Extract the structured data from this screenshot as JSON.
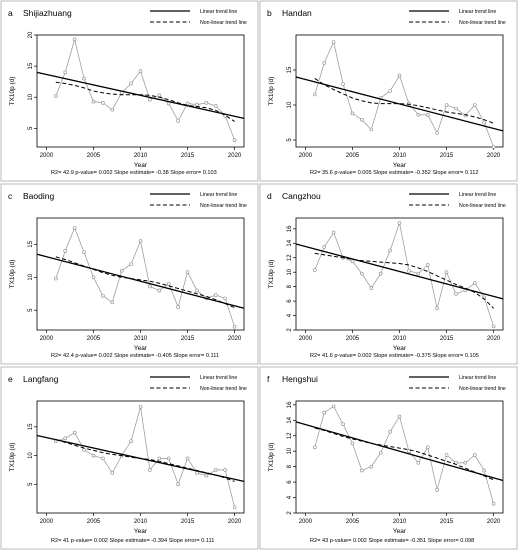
{
  "legend": {
    "linear": "Linear trend line",
    "nonlinear": "Non-linear trend line"
  },
  "xlabel": "Year",
  "ylabel": "TX10p  (d)",
  "chart_data": [
    {
      "type": "line",
      "panel": "a",
      "title": "Shijiazhuang",
      "x": [
        2001,
        2002,
        2003,
        2004,
        2005,
        2006,
        2007,
        2008,
        2009,
        2010,
        2011,
        2012,
        2013,
        2014,
        2015,
        2016,
        2017,
        2018,
        2019,
        2020
      ],
      "observed": [
        10.2,
        14.0,
        19.3,
        13.0,
        9.3,
        9.1,
        8.0,
        10.7,
        12.2,
        14.2,
        9.6,
        10.3,
        9.0,
        6.2,
        9.0,
        8.8,
        9.1,
        8.6,
        7.0,
        3.1
      ],
      "linear_trend": [
        14.0,
        6.6
      ],
      "nonlinear_trend": [
        12.4,
        12.2,
        11.9,
        11.5,
        11.0,
        10.7,
        10.5,
        10.4,
        10.4,
        10.4,
        10.3,
        10.0,
        9.6,
        9.1,
        8.7,
        8.5,
        8.3,
        7.9,
        7.1,
        6.1
      ],
      "xlim": [
        1999,
        2021
      ],
      "ylim": [
        2,
        20
      ],
      "xticks": [
        2000,
        2005,
        2010,
        2015,
        2020
      ],
      "yticks": [
        5,
        10,
        15,
        20
      ],
      "stats": "R2= 42.9  p-value= 0.002  Slope estimate= -0.38  Slope error= 0.103",
      "plot_corner": "top-right"
    },
    {
      "type": "line",
      "panel": "b",
      "title": "Handan",
      "x": [
        2001,
        2002,
        2003,
        2004,
        2005,
        2006,
        2007,
        2008,
        2009,
        2010,
        2011,
        2012,
        2013,
        2014,
        2015,
        2016,
        2017,
        2018,
        2019,
        2020
      ],
      "observed": [
        11.5,
        16.0,
        19.0,
        13.0,
        8.8,
        7.9,
        6.5,
        11.0,
        12.0,
        14.2,
        10.2,
        8.6,
        8.6,
        6.0,
        10.0,
        9.5,
        8.5,
        10.0,
        7.5,
        4.0
      ],
      "linear_trend": [
        14.0,
        6.3
      ],
      "nonlinear_trend": [
        13.8,
        12.9,
        12.2,
        11.6,
        11.0,
        10.6,
        10.3,
        10.2,
        10.2,
        10.2,
        10.1,
        9.9,
        9.6,
        9.3,
        9.0,
        8.8,
        8.6,
        8.3,
        7.9,
        7.4
      ],
      "xlim": [
        1999,
        2021
      ],
      "ylim": [
        4,
        20
      ],
      "xticks": [
        2000,
        2005,
        2010,
        2015,
        2020
      ],
      "yticks": [
        5,
        10,
        15
      ],
      "stats": "R2= 35.6  p-value= 0.005  Slope estimate= -0.352  Slope error= 0.112",
      "plot_corner": "top-right"
    },
    {
      "type": "line",
      "panel": "c",
      "title": "Baoding",
      "x": [
        2001,
        2002,
        2003,
        2004,
        2005,
        2006,
        2007,
        2008,
        2009,
        2010,
        2011,
        2012,
        2013,
        2014,
        2015,
        2016,
        2017,
        2018,
        2019,
        2020
      ],
      "observed": [
        9.8,
        14.0,
        17.5,
        13.8,
        10.0,
        7.2,
        6.2,
        11.0,
        12.0,
        15.5,
        8.6,
        8.0,
        9.0,
        5.5,
        10.8,
        8.0,
        6.8,
        7.3,
        6.8,
        2.5
      ],
      "linear_trend": [
        13.5,
        5.3
      ],
      "nonlinear_trend": [
        13.1,
        12.7,
        12.2,
        11.7,
        11.2,
        10.7,
        10.3,
        10.0,
        9.8,
        9.6,
        9.4,
        9.1,
        8.7,
        8.3,
        7.9,
        7.5,
        7.1,
        6.6,
        6.0,
        5.4
      ],
      "xlim": [
        1999,
        2021
      ],
      "ylim": [
        2,
        19
      ],
      "xticks": [
        2000,
        2005,
        2010,
        2015,
        2020
      ],
      "yticks": [
        5,
        10,
        15
      ],
      "stats": "R2= 42.4  p-value= 0.002  Slope estimate= -0.405  Slope error= 0.111",
      "plot_corner": "top-right"
    },
    {
      "type": "line",
      "panel": "d",
      "title": "Cangzhou",
      "x": [
        2001,
        2002,
        2003,
        2004,
        2005,
        2006,
        2007,
        2008,
        2009,
        2010,
        2011,
        2012,
        2013,
        2014,
        2015,
        2016,
        2017,
        2018,
        2019,
        2020
      ],
      "observed": [
        10.3,
        13.5,
        15.5,
        12.0,
        11.5,
        9.8,
        7.8,
        9.8,
        13.0,
        16.8,
        10.2,
        9.8,
        11.0,
        5.0,
        10.0,
        7.0,
        7.5,
        8.5,
        6.5,
        2.5
      ],
      "linear_trend": [
        13.9,
        6.3
      ],
      "nonlinear_trend": [
        12.6,
        12.4,
        12.2,
        12.0,
        11.8,
        11.6,
        11.5,
        11.4,
        11.3,
        11.2,
        11.0,
        10.6,
        10.1,
        9.5,
        8.9,
        8.3,
        7.8,
        7.2,
        6.3,
        5.0
      ],
      "xlim": [
        1999,
        2021
      ],
      "ylim": [
        2,
        17.5
      ],
      "xticks": [
        2000,
        2005,
        2010,
        2015,
        2020
      ],
      "yticks": [
        2,
        4,
        6,
        8,
        10,
        12,
        14,
        16
      ],
      "stats": "R2= 41.6  p-value= 0.002  Slope estimate= -0.375  Slope error= 0.105",
      "plot_corner": "top-right"
    },
    {
      "type": "line",
      "panel": "e",
      "title": "Langfang",
      "x": [
        2001,
        2002,
        2003,
        2004,
        2005,
        2006,
        2007,
        2008,
        2009,
        2010,
        2011,
        2012,
        2013,
        2014,
        2015,
        2016,
        2017,
        2018,
        2019,
        2020
      ],
      "observed": [
        12.5,
        13.0,
        14.0,
        11.0,
        10.0,
        9.5,
        7.0,
        10.0,
        12.5,
        18.5,
        7.5,
        9.5,
        9.5,
        5.0,
        9.5,
        7.0,
        6.5,
        7.5,
        7.5,
        1.0
      ],
      "linear_trend": [
        13.5,
        5.5
      ],
      "nonlinear_trend": [
        12.8,
        12.3,
        11.8,
        11.3,
        10.9,
        10.5,
        10.2,
        10.0,
        9.7,
        9.5,
        9.3,
        9.0,
        8.6,
        8.2,
        7.8,
        7.4,
        7.0,
        6.6,
        6.1,
        5.5
      ],
      "xlim": [
        1999,
        2021
      ],
      "ylim": [
        0,
        19.5
      ],
      "xticks": [
        2000,
        2005,
        2010,
        2015,
        2020
      ],
      "yticks": [
        5,
        10,
        15
      ],
      "stats": "R2= 41  p-value= 0.002  Slope estimate= -0.394  Slope error= 0.111",
      "plot_corner": "top-right"
    },
    {
      "type": "line",
      "panel": "f",
      "title": "Hengshui",
      "x": [
        2001,
        2002,
        2003,
        2004,
        2005,
        2006,
        2007,
        2008,
        2009,
        2010,
        2011,
        2012,
        2013,
        2014,
        2015,
        2016,
        2017,
        2018,
        2019,
        2020
      ],
      "observed": [
        10.5,
        15.0,
        15.8,
        13.5,
        11.0,
        7.5,
        8.0,
        9.8,
        12.5,
        14.5,
        10.0,
        8.5,
        10.5,
        5.0,
        9.5,
        8.5,
        8.5,
        9.5,
        7.5,
        3.2
      ],
      "linear_trend": [
        13.8,
        6.2
      ],
      "nonlinear_trend": [
        13.0,
        12.7,
        12.3,
        11.9,
        11.6,
        11.3,
        11.0,
        10.8,
        10.6,
        10.4,
        10.2,
        9.9,
        9.5,
        9.1,
        8.7,
        8.3,
        7.8,
        7.3,
        6.8,
        6.3
      ],
      "xlim": [
        1999,
        2021
      ],
      "ylim": [
        2,
        16.5
      ],
      "xticks": [
        2000,
        2005,
        2010,
        2015,
        2020
      ],
      "yticks": [
        2,
        4,
        6,
        8,
        10,
        12,
        14,
        16
      ],
      "stats": "R2= 43  p-value= 0.002  Slope estimate= -0.351  Slope error= 0.098",
      "plot_corner": "top-right"
    }
  ]
}
